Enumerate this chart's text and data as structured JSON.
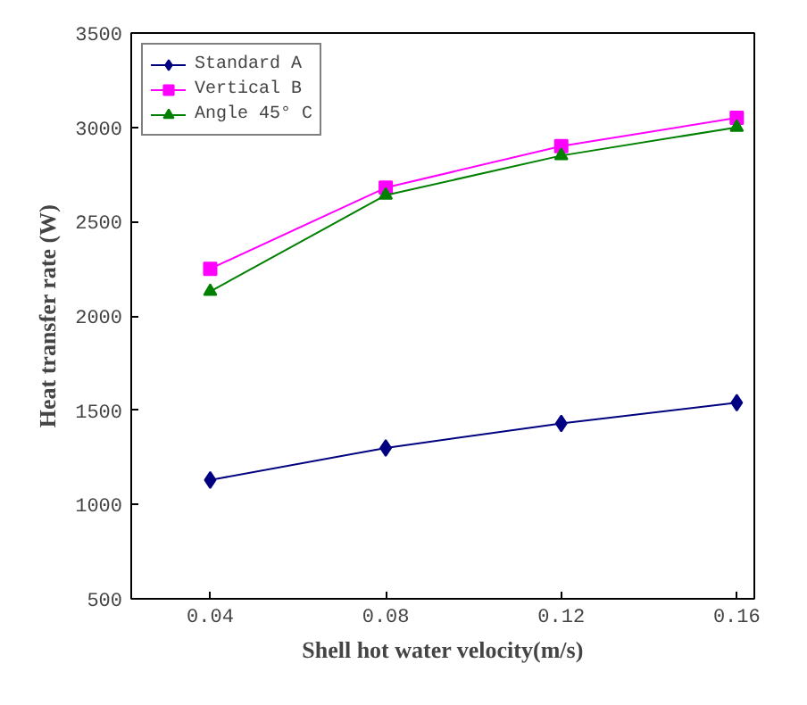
{
  "chart_data": {
    "type": "line",
    "xlabel": "Shell hot water velocity(m/s)",
    "ylabel": "Heat transfer rate (W)",
    "x": [
      0.04,
      0.08,
      0.12,
      0.16
    ],
    "series": [
      {
        "name": "Standard A",
        "color": "#000080",
        "marker": "diamond",
        "values": [
          1130,
          1300,
          1430,
          1540
        ]
      },
      {
        "name": "Vertical B",
        "color": "#ff00ff",
        "marker": "square",
        "values": [
          2250,
          2680,
          2900,
          3050
        ]
      },
      {
        "name": "Angle 45° C",
        "color": "#008000",
        "marker": "triangle",
        "values": [
          2130,
          2640,
          2850,
          3000
        ]
      }
    ],
    "xlim": [
      0.022,
      0.164
    ],
    "xticks": [
      0.04,
      0.08,
      0.12,
      0.16
    ],
    "ylim": [
      500,
      3500
    ],
    "yticks": [
      500,
      1000,
      1500,
      2000,
      2500,
      3000,
      3500
    ],
    "grid": false,
    "legend": "top left",
    "line_style": "solid"
  }
}
